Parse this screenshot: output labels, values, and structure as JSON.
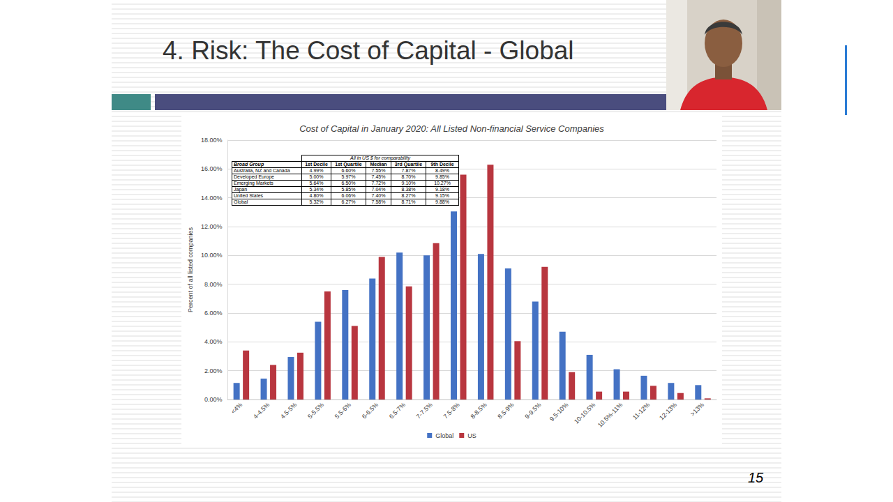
{
  "slide_title": "4. Risk: The Cost of Capital - Global",
  "page_number": "15",
  "chart_data": {
    "type": "bar",
    "title": "Cost of Capital in January 2020: All Listed Non-financial Service Companies",
    "ylabel": "Percent of all listed companies",
    "categories": [
      "<4%",
      "4-4.5%",
      "4.5-5%",
      "5-5.5%",
      "5.5-6%",
      "6-6.5%",
      "6.5-7%",
      "7-7.5%",
      "7.5-8%",
      "8-8.5%",
      "8.5-9%",
      "9-9.5%",
      "9.5-10%",
      "10-10.5%",
      "10.5%-11%",
      "11-12%",
      "12-13%",
      ">13%"
    ],
    "series": [
      {
        "name": "Global",
        "color": "#4472c4",
        "values": [
          1.15,
          1.45,
          2.95,
          5.4,
          7.6,
          8.4,
          10.2,
          10.0,
          13.05,
          10.1,
          9.1,
          6.8,
          4.7,
          3.1,
          2.1,
          1.65,
          1.15,
          1.0
        ]
      },
      {
        "name": "US",
        "color": "#b8363f",
        "values": [
          3.4,
          2.4,
          3.25,
          7.5,
          5.1,
          9.9,
          7.85,
          10.85,
          15.6,
          16.3,
          4.05,
          9.2,
          1.9,
          0.55,
          0.55,
          0.95,
          0.45,
          0.08
        ]
      }
    ],
    "ylim": [
      0,
      18
    ],
    "yticks": [
      {
        "value": 0,
        "label": "0.00%"
      },
      {
        "value": 2,
        "label": "2.00%"
      },
      {
        "value": 4,
        "label": "4.00%"
      },
      {
        "value": 6,
        "label": "6.00%"
      },
      {
        "value": 8,
        "label": "8.00%"
      },
      {
        "value": 10,
        "label": "10.00%"
      },
      {
        "value": 12,
        "label": "12.00%"
      },
      {
        "value": 14,
        "label": "14.00%"
      },
      {
        "value": 16,
        "label": "16.00%"
      },
      {
        "value": 18,
        "label": "18.00%"
      }
    ],
    "grid": true,
    "legend": "bottom",
    "table": {
      "super_header": "All in US $ for comparability",
      "columns": [
        "Broad Group",
        "1st Decile",
        "1st Quartile",
        "Median",
        "3rd Quartile",
        "9th Decile"
      ],
      "rows": [
        [
          "Australia, NZ and Canada",
          "4.99%",
          "6.60%",
          "7.55%",
          "7.87%",
          "8.49%"
        ],
        [
          "Developed Europe",
          "5.00%",
          "5.97%",
          "7.45%",
          "8.70%",
          "9.85%"
        ],
        [
          "Emerging Markets",
          "5.64%",
          "6.50%",
          "7.72%",
          "9.10%",
          "10.27%"
        ],
        [
          "Japan",
          "5.34%",
          "5.85%",
          "7.04%",
          "8.38%",
          "9.18%"
        ],
        [
          "United States",
          "4.80%",
          "6.06%",
          "7.40%",
          "8.27%",
          "9.15%"
        ],
        [
          "Global",
          "5.32%",
          "6.27%",
          "7.58%",
          "8.71%",
          "9.88%"
        ]
      ]
    }
  }
}
